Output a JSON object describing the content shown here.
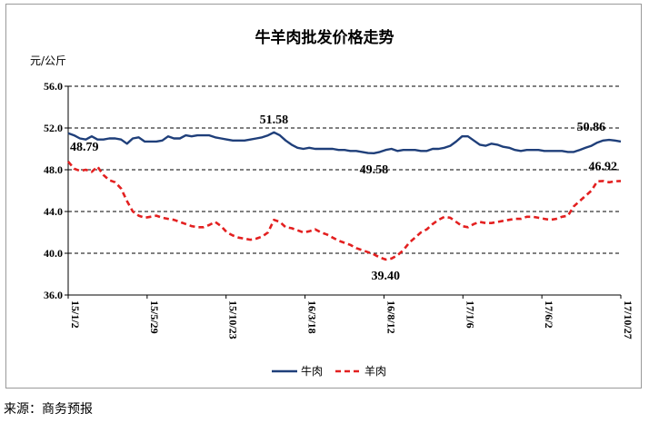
{
  "chart_data": {
    "type": "line",
    "title": "牛羊肉批发价格走势",
    "ylabel": "元/公斤",
    "ylim": [
      36.0,
      56.0
    ],
    "yticks": [
      "56.0",
      "52.0",
      "48.0",
      "44.0",
      "40.0",
      "36.0"
    ],
    "xticks": [
      "15/1/2",
      "15/5/29",
      "15/10/23",
      "16/3/18",
      "16/8/12",
      "17/1/6",
      "17/6/2",
      "17/10/27"
    ],
    "grid": "horizontal dashed",
    "legend_position": "bottom",
    "series": [
      {
        "name": "牛肉",
        "color": "#1f3f7a",
        "style": "solid",
        "values": [
          51.5,
          51.3,
          51.0,
          50.9,
          51.2,
          50.9,
          50.9,
          51.0,
          51.0,
          50.9,
          50.5,
          51.0,
          51.1,
          50.7,
          50.7,
          50.7,
          50.8,
          51.2,
          51.0,
          51.0,
          51.3,
          51.2,
          51.3,
          51.3,
          51.3,
          51.1,
          51.0,
          50.9,
          50.8,
          50.8,
          50.8,
          50.9,
          51.0,
          51.1,
          51.3,
          51.58,
          51.3,
          50.8,
          50.4,
          50.1,
          50.0,
          50.1,
          50.0,
          50.0,
          50.0,
          50.0,
          49.9,
          49.9,
          49.8,
          49.8,
          49.7,
          49.6,
          49.58,
          49.7,
          49.9,
          50.0,
          49.8,
          49.9,
          49.9,
          49.9,
          49.8,
          49.8,
          50.0,
          50.0,
          50.1,
          50.3,
          50.7,
          51.2,
          51.2,
          50.8,
          50.4,
          50.3,
          50.5,
          50.4,
          50.2,
          50.1,
          49.9,
          49.8,
          49.9,
          49.9,
          49.9,
          49.8,
          49.8,
          49.8,
          49.8,
          49.7,
          49.7,
          49.9,
          50.1,
          50.3,
          50.6,
          50.8,
          50.86,
          50.8,
          50.7
        ],
        "annotations": [
          {
            "text": "51.58",
            "index": 35
          },
          {
            "text": "49.58",
            "index": 52
          },
          {
            "text": "50.86",
            "index": 92
          }
        ]
      },
      {
        "name": "羊肉",
        "color": "#e32020",
        "style": "dashed",
        "values": [
          48.79,
          48.1,
          47.9,
          48.0,
          47.8,
          48.3,
          47.5,
          47.0,
          46.8,
          46.2,
          45.0,
          44.0,
          43.6,
          43.4,
          43.5,
          43.6,
          43.4,
          43.3,
          43.2,
          43.0,
          42.8,
          42.6,
          42.5,
          42.5,
          42.7,
          43.0,
          42.6,
          42.0,
          41.7,
          41.5,
          41.4,
          41.3,
          41.4,
          41.6,
          42.0,
          43.2,
          43.0,
          42.5,
          42.4,
          42.2,
          42.0,
          42.1,
          42.3,
          42.0,
          41.8,
          41.5,
          41.2,
          41.0,
          40.8,
          40.5,
          40.3,
          40.1,
          39.9,
          39.6,
          39.4,
          39.5,
          39.8,
          40.3,
          41.0,
          41.5,
          42.0,
          42.3,
          42.8,
          43.2,
          43.5,
          43.4,
          43.0,
          42.6,
          42.5,
          42.8,
          43.0,
          42.9,
          42.9,
          43.0,
          43.1,
          43.2,
          43.3,
          43.3,
          43.5,
          43.5,
          43.4,
          43.3,
          43.2,
          43.3,
          43.5,
          43.6,
          44.5,
          45.0,
          45.5,
          46.0,
          46.9,
          46.92,
          46.8,
          46.9,
          46.92
        ],
        "annotations": [
          {
            "text": "48.79",
            "index": 0
          },
          {
            "text": "39.40",
            "index": 54
          },
          {
            "text": "46.92",
            "index": 94
          }
        ]
      }
    ]
  },
  "source": "来源：商务预报"
}
